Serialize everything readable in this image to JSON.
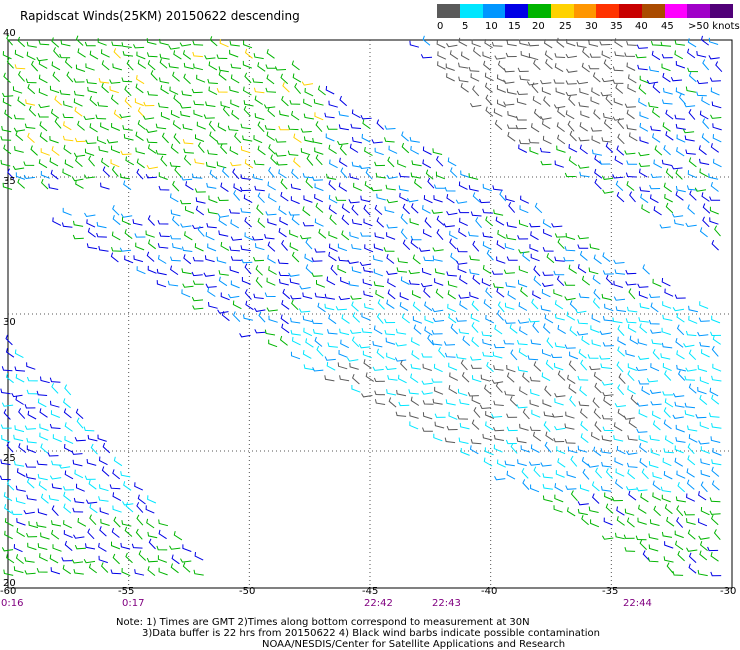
{
  "header": {
    "title": "Rapidscat Winds(25KM) 20150622 descending"
  },
  "colorbar": {
    "labels": [
      "0",
      "5",
      "10",
      "15",
      "20",
      "25",
      "30",
      "35",
      "40",
      "45",
      ">50 knots"
    ],
    "colors": [
      "#5a5a5a",
      "#00e6ff",
      "#0096ff",
      "#0000e6",
      "#00b400",
      "#ffd200",
      "#ff9600",
      "#ff3200",
      "#c80000",
      "#aa4b00",
      "#ff00ff",
      "#a000c8",
      "#500078"
    ]
  },
  "map": {
    "lon_labels": [
      "-60",
      "-55",
      "-50",
      "-45",
      "-40",
      "-35",
      "-30"
    ],
    "lat_labels": [
      "40",
      "35",
      "30",
      "25",
      "20"
    ],
    "lon_range": [
      -60,
      -30
    ],
    "lat_range": [
      20,
      40
    ],
    "grid": "dotted"
  },
  "times": [
    "0:16",
    "0:17",
    "22:42",
    "22:43",
    "22:44"
  ],
  "notes": {
    "line1": "Note: 1) Times are GMT 2)Times along bottom correspond to measurement at 30N",
    "line2": "3)Data buffer is 22 hrs from 20150622 4) Black wind barbs indicate possible contamination",
    "line3": "NOAA/NESDIS/Center for Satellite Applications and Research"
  }
}
